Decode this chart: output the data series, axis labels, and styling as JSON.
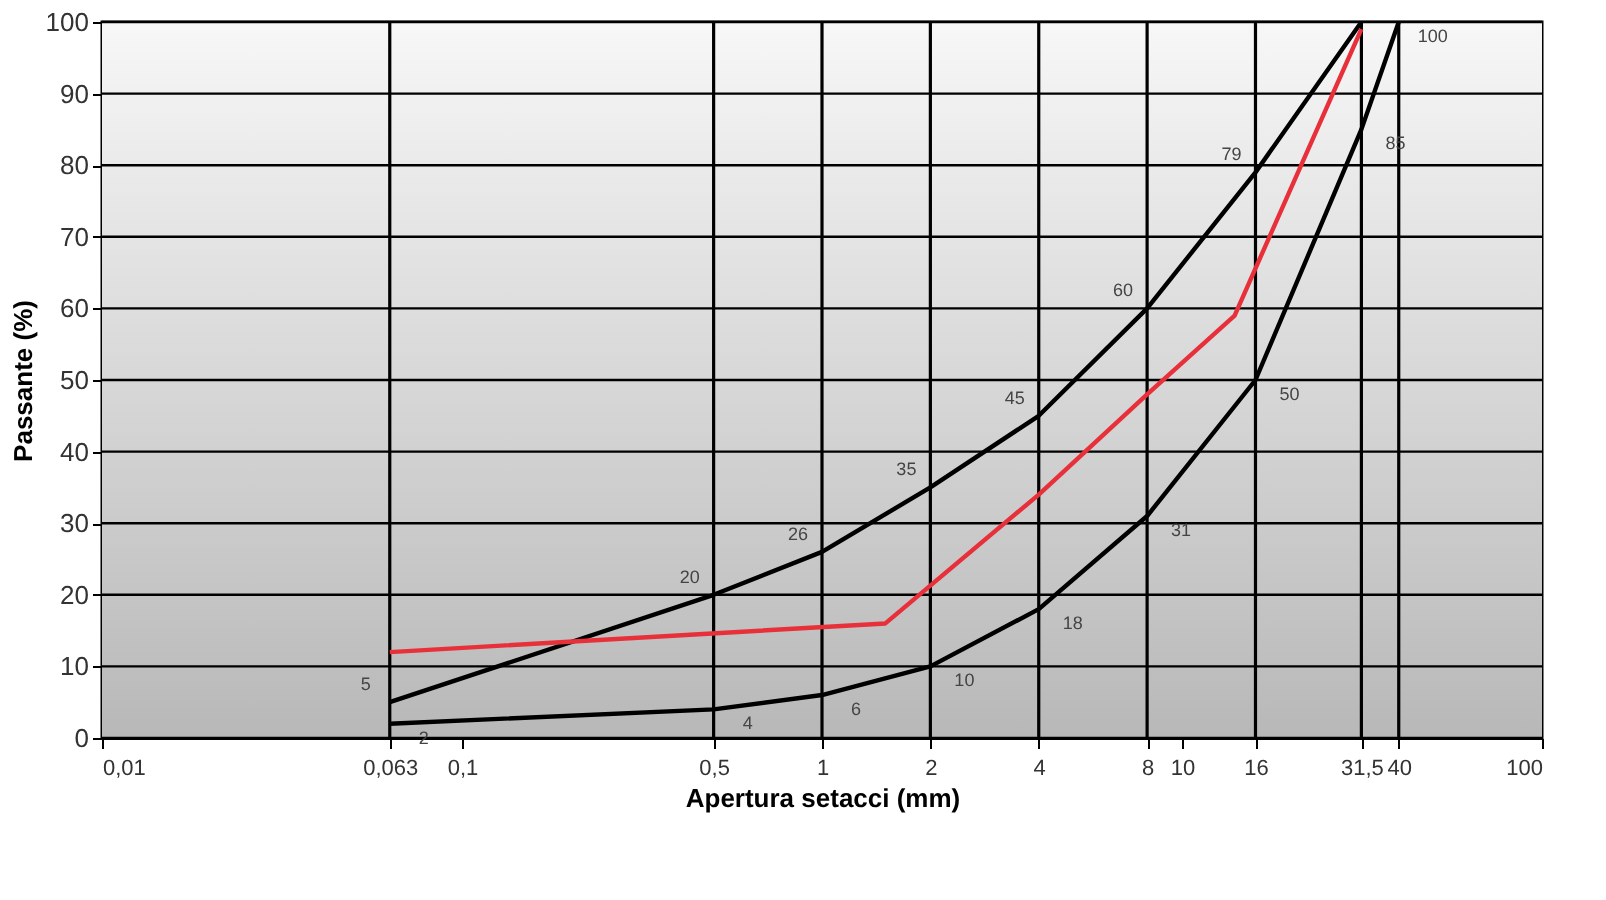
{
  "chart_data": {
    "type": "line",
    "xlabel": "Apertura setacci (mm)",
    "ylabel": "Passante (%)",
    "log": "x",
    "xlim": [
      0.01,
      100
    ],
    "ylim": [
      0,
      100
    ],
    "xticks": [
      {
        "value": 0.01,
        "label": "0,01"
      },
      {
        "value": 0.063,
        "label": "0,063"
      },
      {
        "value": 0.1,
        "label": "0,1"
      },
      {
        "value": 0.5,
        "label": "0,5"
      },
      {
        "value": 1,
        "label": "1"
      },
      {
        "value": 2,
        "label": "2"
      },
      {
        "value": 4,
        "label": "4"
      },
      {
        "value": 8,
        "label": "8"
      },
      {
        "value": 10,
        "label": "10"
      },
      {
        "value": 16,
        "label": "16"
      },
      {
        "value": 31.5,
        "label": "31,5"
      },
      {
        "value": 40,
        "label": "40"
      },
      {
        "value": 100,
        "label": "100"
      }
    ],
    "yticks": [
      0,
      10,
      20,
      30,
      40,
      50,
      60,
      70,
      80,
      90,
      100
    ],
    "grid": true,
    "marker": "none",
    "line_style": "solid",
    "series": [
      {
        "color": "#000000",
        "x": [
          0.063,
          0.5,
          1,
          2,
          4,
          8,
          16,
          31.5
        ],
        "values": [
          5,
          20,
          26,
          35,
          45,
          60,
          79,
          100
        ],
        "value_labels": [
          "5",
          "20",
          "26",
          "35",
          "45",
          "60",
          "79",
          null
        ]
      },
      {
        "color": "#000000",
        "x": [
          0.063,
          0.5,
          1,
          2,
          4,
          8,
          16,
          31.5,
          40
        ],
        "values": [
          2,
          4,
          6,
          10,
          18,
          31,
          50,
          85,
          100
        ],
        "value_labels": [
          "2",
          "4",
          "6",
          "10",
          "18",
          "31",
          "50",
          "85",
          "100"
        ]
      },
      {
        "color": "#e8303a",
        "x": [
          0.063,
          1.5,
          4,
          8,
          14,
          31.5
        ],
        "values": [
          12,
          16,
          34,
          48,
          59,
          99
        ]
      }
    ]
  }
}
